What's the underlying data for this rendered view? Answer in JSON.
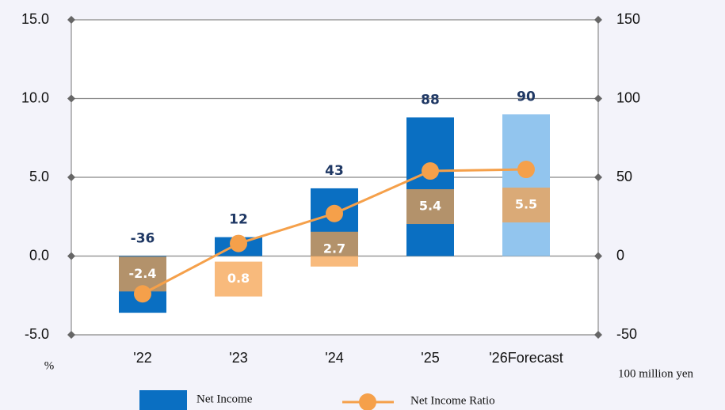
{
  "chart_data": {
    "type": "bar-line",
    "categories": [
      "'22",
      "'23",
      "'24",
      "'25",
      "'26Forecast"
    ],
    "series": [
      {
        "name": "Net Income",
        "type": "bar",
        "axis": "y2",
        "values": [
          -36,
          12,
          43,
          88,
          90
        ],
        "colors": [
          "#0a6fc2",
          "#0a6fc2",
          "#0a6fc2",
          "#0a6fc2",
          "#92c5ee"
        ],
        "color": "#0a6fc2"
      },
      {
        "name": "Net Income Ratio",
        "type": "line",
        "axis": "y",
        "values": [
          -2.4,
          0.8,
          2.7,
          5.4,
          5.5
        ],
        "color": "#f5a04a"
      }
    ],
    "ylabel": "%",
    "y2label": "100 million yen",
    "ylim": [
      -5,
      15
    ],
    "yticks": [
      {
        "value": -5,
        "label": "-5.0"
      },
      {
        "value": 0,
        "label": "0.0"
      },
      {
        "value": 5,
        "label": "5.0"
      },
      {
        "value": 10,
        "label": "10.0"
      },
      {
        "value": 15,
        "label": "15.0"
      }
    ],
    "y2lim": [
      -50,
      150
    ],
    "y2ticks": [
      -50,
      0,
      50,
      100,
      150
    ],
    "grid": true,
    "legend": "bottom"
  }
}
